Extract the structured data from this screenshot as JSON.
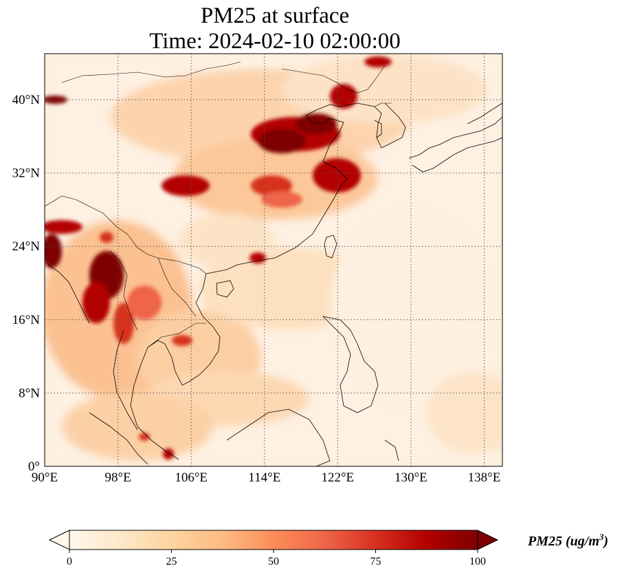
{
  "title": {
    "line1": "PM25 at surface",
    "line2": "Time: 2024-02-10 02:00:00"
  },
  "map": {
    "projection": "PlateCarree",
    "lon_range": [
      90,
      140
    ],
    "lat_range": [
      0,
      44
    ],
    "x_ticks": [
      "90°E",
      "98°E",
      "106°E",
      "114°E",
      "122°E",
      "130°E",
      "138°E"
    ],
    "y_ticks": [
      "0°",
      "8°N",
      "16°N",
      "24°N",
      "32°N",
      "40°N"
    ],
    "gridlines": "dotted",
    "coastlines": true,
    "borders": true
  },
  "colorbar": {
    "colormap": "OrRd",
    "colors": [
      "#fff7ec",
      "#fee8c8",
      "#fdd49e",
      "#fdbb84",
      "#fc8d59",
      "#ef6548",
      "#d7301f",
      "#b30000",
      "#7f0000"
    ],
    "range": [
      0,
      100
    ],
    "extend": "both",
    "ticks": [
      "0",
      "25",
      "50",
      "75",
      "100"
    ],
    "label_text": "PM25 (ug/m",
    "label_sup": "3",
    "label_close": ")"
  }
}
